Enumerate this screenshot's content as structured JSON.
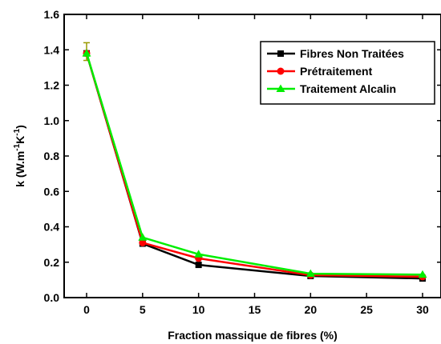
{
  "chart_data": {
    "type": "line",
    "x": [
      0,
      5,
      10,
      20,
      30
    ],
    "xlabel": "Fraction massique de fibres (%)",
    "ylabel": "k (W.m-1K-1)",
    "ylabel_parts": {
      "base": "k (W.m",
      "sup1": "-1",
      "mid": "K",
      "sup2": "-1",
      "end": ")"
    },
    "xlim": [
      -3,
      31
    ],
    "ylim": [
      0,
      1.6
    ],
    "xticks": [
      0,
      5,
      10,
      15,
      20,
      25,
      30
    ],
    "yticks": [
      0.0,
      0.2,
      0.4,
      0.6,
      0.8,
      1.0,
      1.2,
      1.4,
      1.6
    ],
    "xtick_labels": [
      "0",
      "5",
      "10",
      "15",
      "20",
      "25",
      "30"
    ],
    "ytick_labels": [
      "0.0",
      "0.2",
      "0.4",
      "0.6",
      "0.8",
      "1.0",
      "1.2",
      "1.4",
      "1.6"
    ],
    "legend_position": "top-right",
    "grid": false,
    "series": [
      {
        "name": "Fibres Non Traitées",
        "color": "#000000",
        "marker": "square",
        "values": [
          1.38,
          0.305,
          0.185,
          0.122,
          0.108
        ]
      },
      {
        "name": "Prétraitement",
        "color": "#ff0000",
        "marker": "circle",
        "values": [
          1.38,
          0.31,
          0.222,
          0.127,
          0.118
        ]
      },
      {
        "name": "Traitement Alcalin",
        "color": "#00ee00",
        "marker": "triangle",
        "values": [
          1.38,
          0.34,
          0.245,
          0.135,
          0.13
        ]
      }
    ],
    "error_bar": {
      "x": 0,
      "value": 1.39,
      "error": 0.05,
      "color": "#999900"
    }
  }
}
